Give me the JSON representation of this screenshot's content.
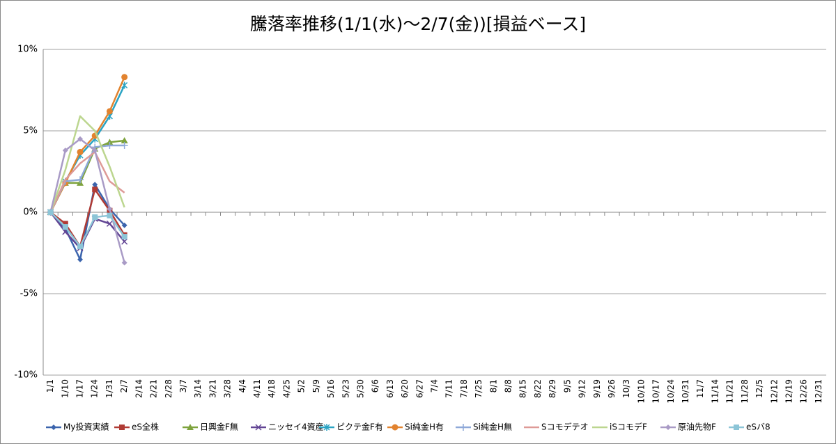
{
  "chart_data": {
    "type": "line",
    "title": "騰落率推移(1/1(水)～2/7(金))[損益ベース]",
    "categories": [
      "1/1",
      "1/10",
      "1/17",
      "1/24",
      "1/31",
      "2/7",
      "2/14",
      "2/21",
      "2/28",
      "3/7",
      "3/14",
      "3/21",
      "3/28",
      "4/4",
      "4/11",
      "4/18",
      "4/25",
      "5/2",
      "5/9",
      "5/16",
      "5/23",
      "5/30",
      "6/6",
      "6/13",
      "6/20",
      "6/27",
      "7/4",
      "7/11",
      "7/18",
      "7/25",
      "8/1",
      "8/8",
      "8/15",
      "8/22",
      "8/29",
      "9/5",
      "9/12",
      "9/19",
      "9/26",
      "10/3",
      "10/10",
      "10/17",
      "10/24",
      "10/31",
      "11/7",
      "11/14",
      "11/21",
      "11/28",
      "12/5",
      "12/12",
      "12/19",
      "12/26",
      "12/31"
    ],
    "series": [
      {
        "name": "My投資実績",
        "color": "#3b64ad",
        "marker": "diamond",
        "values": [
          0,
          -1.0,
          -2.9,
          1.7,
          0.2,
          -0.8,
          null,
          null,
          null,
          null,
          null,
          null,
          null,
          null,
          null,
          null,
          null,
          null,
          null,
          null,
          null,
          null,
          null,
          null,
          null,
          null,
          null,
          null,
          null,
          null,
          null,
          null,
          null,
          null,
          null,
          null,
          null,
          null,
          null,
          null,
          null,
          null,
          null,
          null,
          null,
          null,
          null,
          null,
          null,
          null,
          null,
          null,
          null
        ]
      },
      {
        "name": "eS全株",
        "color": "#b03b35",
        "marker": "square",
        "values": [
          0,
          -0.7,
          -2.1,
          1.4,
          0.1,
          -1.4,
          null,
          null,
          null,
          null,
          null,
          null,
          null,
          null,
          null,
          null,
          null,
          null,
          null,
          null,
          null,
          null,
          null,
          null,
          null,
          null,
          null,
          null,
          null,
          null,
          null,
          null,
          null,
          null,
          null,
          null,
          null,
          null,
          null,
          null,
          null,
          null,
          null,
          null,
          null,
          null,
          null,
          null,
          null,
          null,
          null,
          null,
          null
        ]
      },
      {
        "name": "日興金F無",
        "color": "#7ea33d",
        "marker": "triangle",
        "values": [
          0,
          1.8,
          1.8,
          3.9,
          4.3,
          4.4,
          null,
          null,
          null,
          null,
          null,
          null,
          null,
          null,
          null,
          null,
          null,
          null,
          null,
          null,
          null,
          null,
          null,
          null,
          null,
          null,
          null,
          null,
          null,
          null,
          null,
          null,
          null,
          null,
          null,
          null,
          null,
          null,
          null,
          null,
          null,
          null,
          null,
          null,
          null,
          null,
          null,
          null,
          null,
          null,
          null,
          null,
          null
        ]
      },
      {
        "name": "ニッセイ4資産",
        "color": "#624594",
        "marker": "x",
        "values": [
          0,
          -1.2,
          -2.2,
          -0.4,
          -0.7,
          -1.8,
          null,
          null,
          null,
          null,
          null,
          null,
          null,
          null,
          null,
          null,
          null,
          null,
          null,
          null,
          null,
          null,
          null,
          null,
          null,
          null,
          null,
          null,
          null,
          null,
          null,
          null,
          null,
          null,
          null,
          null,
          null,
          null,
          null,
          null,
          null,
          null,
          null,
          null,
          null,
          null,
          null,
          null,
          null,
          null,
          null,
          null,
          null
        ]
      },
      {
        "name": "ピクテ金F有",
        "color": "#2aa3c3",
        "marker": "star",
        "values": [
          0,
          1.9,
          3.5,
          4.5,
          5.9,
          7.8,
          null,
          null,
          null,
          null,
          null,
          null,
          null,
          null,
          null,
          null,
          null,
          null,
          null,
          null,
          null,
          null,
          null,
          null,
          null,
          null,
          null,
          null,
          null,
          null,
          null,
          null,
          null,
          null,
          null,
          null,
          null,
          null,
          null,
          null,
          null,
          null,
          null,
          null,
          null,
          null,
          null,
          null,
          null,
          null,
          null,
          null,
          null
        ]
      },
      {
        "name": "Si純金H有",
        "color": "#e2832f",
        "marker": "circle",
        "values": [
          0,
          1.8,
          3.7,
          4.7,
          6.2,
          8.3,
          null,
          null,
          null,
          null,
          null,
          null,
          null,
          null,
          null,
          null,
          null,
          null,
          null,
          null,
          null,
          null,
          null,
          null,
          null,
          null,
          null,
          null,
          null,
          null,
          null,
          null,
          null,
          null,
          null,
          null,
          null,
          null,
          null,
          null,
          null,
          null,
          null,
          null,
          null,
          null,
          null,
          null,
          null,
          null,
          null,
          null,
          null
        ]
      },
      {
        "name": "Si純金H無",
        "color": "#8ea8d8",
        "marker": "plus",
        "values": [
          0,
          1.9,
          2.0,
          4.0,
          4.1,
          4.1,
          null,
          null,
          null,
          null,
          null,
          null,
          null,
          null,
          null,
          null,
          null,
          null,
          null,
          null,
          null,
          null,
          null,
          null,
          null,
          null,
          null,
          null,
          null,
          null,
          null,
          null,
          null,
          null,
          null,
          null,
          null,
          null,
          null,
          null,
          null,
          null,
          null,
          null,
          null,
          null,
          null,
          null,
          null,
          null,
          null,
          null,
          null
        ]
      },
      {
        "name": "Sコモデテオ",
        "color": "#de9a97",
        "marker": "none",
        "values": [
          0,
          2.0,
          3.0,
          3.7,
          1.9,
          1.2,
          null,
          null,
          null,
          null,
          null,
          null,
          null,
          null,
          null,
          null,
          null,
          null,
          null,
          null,
          null,
          null,
          null,
          null,
          null,
          null,
          null,
          null,
          null,
          null,
          null,
          null,
          null,
          null,
          null,
          null,
          null,
          null,
          null,
          null,
          null,
          null,
          null,
          null,
          null,
          null,
          null,
          null,
          null,
          null,
          null,
          null,
          null
        ]
      },
      {
        "name": "iSコモデF",
        "color": "#bcd68f",
        "marker": "none",
        "values": [
          0,
          2.6,
          5.9,
          5.0,
          2.8,
          0.3,
          null,
          null,
          null,
          null,
          null,
          null,
          null,
          null,
          null,
          null,
          null,
          null,
          null,
          null,
          null,
          null,
          null,
          null,
          null,
          null,
          null,
          null,
          null,
          null,
          null,
          null,
          null,
          null,
          null,
          null,
          null,
          null,
          null,
          null,
          null,
          null,
          null,
          null,
          null,
          null,
          null,
          null,
          null,
          null,
          null,
          null,
          null
        ]
      },
      {
        "name": "原油先物F",
        "color": "#a99bc6",
        "marker": "diamond",
        "values": [
          0,
          3.8,
          4.5,
          3.8,
          0.2,
          -3.1,
          null,
          null,
          null,
          null,
          null,
          null,
          null,
          null,
          null,
          null,
          null,
          null,
          null,
          null,
          null,
          null,
          null,
          null,
          null,
          null,
          null,
          null,
          null,
          null,
          null,
          null,
          null,
          null,
          null,
          null,
          null,
          null,
          null,
          null,
          null,
          null,
          null,
          null,
          null,
          null,
          null,
          null,
          null,
          null,
          null,
          null,
          null
        ]
      },
      {
        "name": "eSバ8",
        "color": "#8cc5d7",
        "marker": "square",
        "values": [
          0,
          -0.9,
          -2.1,
          -0.3,
          -0.2,
          -1.5,
          null,
          null,
          null,
          null,
          null,
          null,
          null,
          null,
          null,
          null,
          null,
          null,
          null,
          null,
          null,
          null,
          null,
          null,
          null,
          null,
          null,
          null,
          null,
          null,
          null,
          null,
          null,
          null,
          null,
          null,
          null,
          null,
          null,
          null,
          null,
          null,
          null,
          null,
          null,
          null,
          null,
          null,
          null,
          null,
          null,
          null,
          null
        ]
      }
    ],
    "ylim": [
      -10,
      10
    ],
    "yticks": [
      {
        "value": -10,
        "label": "-10%"
      },
      {
        "value": -5,
        "label": "-5%"
      },
      {
        "value": 0,
        "label": "0%"
      },
      {
        "value": 5,
        "label": "5%"
      },
      {
        "value": 10,
        "label": "10%"
      }
    ],
    "grid": true,
    "legend": "bottom"
  }
}
